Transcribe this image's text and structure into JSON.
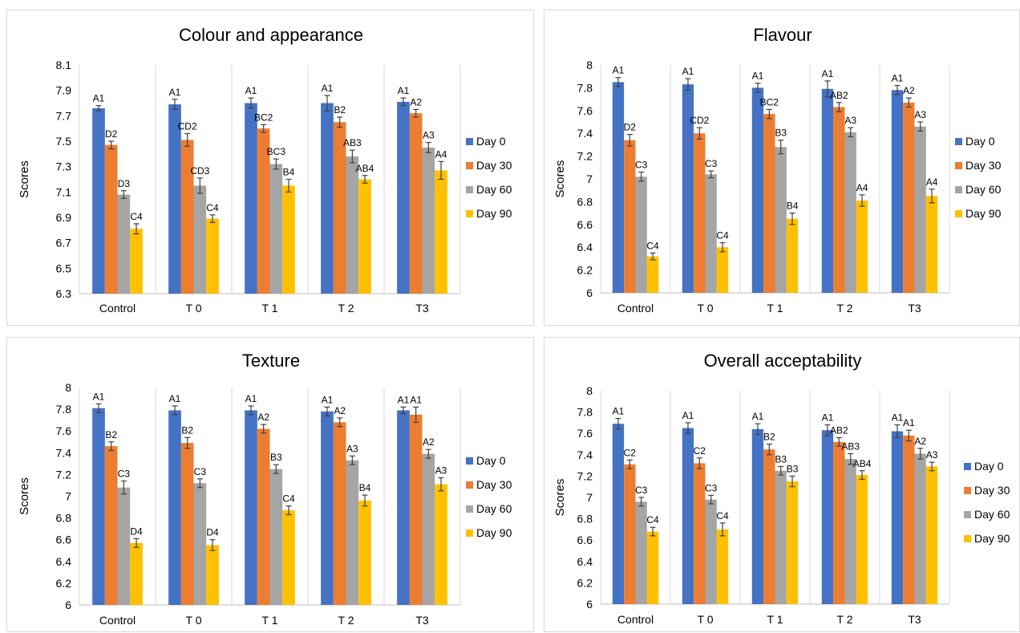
{
  "chart_data": [
    {
      "type": "bar",
      "title": "Colour and appearance",
      "ylabel": "Scores",
      "ylim": [
        6.3,
        8.1
      ],
      "yticks": [
        "6.3",
        "6.5",
        "6.7",
        "6.9",
        "7.1",
        "7.3",
        "7.5",
        "7.7",
        "7.9",
        "8.1"
      ],
      "categories": [
        "Control",
        "T 0",
        "T 1",
        "T 2",
        "T3"
      ],
      "legend_position": "right",
      "series": [
        {
          "name": "Day 0",
          "color": "#4472C4",
          "values": [
            7.76,
            7.79,
            7.8,
            7.8,
            7.81
          ],
          "errors": [
            0.02,
            0.04,
            0.04,
            0.06,
            0.03
          ],
          "labels": [
            "A1",
            "A1",
            "A1",
            "A1",
            "A1"
          ]
        },
        {
          "name": "Day 30",
          "color": "#ED7D31",
          "values": [
            7.47,
            7.51,
            7.6,
            7.65,
            7.72
          ],
          "errors": [
            0.03,
            0.05,
            0.03,
            0.04,
            0.03
          ],
          "labels": [
            "D2",
            "CD2",
            "BC2",
            "B2",
            "A2"
          ]
        },
        {
          "name": "Day 60",
          "color": "#A5A5A5",
          "values": [
            7.08,
            7.15,
            7.32,
            7.38,
            7.45
          ],
          "errors": [
            0.03,
            0.06,
            0.04,
            0.05,
            0.04
          ],
          "labels": [
            "D3",
            "CD3",
            "BC3",
            "AB3",
            "A3"
          ]
        },
        {
          "name": "Day 90",
          "color": "#FFC000",
          "values": [
            6.81,
            6.89,
            7.15,
            7.2,
            7.27
          ],
          "errors": [
            0.04,
            0.03,
            0.05,
            0.03,
            0.07
          ],
          "labels": [
            "C4",
            "C4",
            "B4",
            "AB4",
            "A4"
          ]
        }
      ]
    },
    {
      "type": "bar",
      "title": "Flavour",
      "ylabel": "Scores",
      "ylim": [
        6,
        8
      ],
      "yticks": [
        "6",
        "6.2",
        "6.4",
        "6.6",
        "6.8",
        "7",
        "7.2",
        "7.4",
        "7.6",
        "7.8",
        "8"
      ],
      "categories": [
        "Control",
        "T 0",
        "T 1",
        "T 2",
        "T3"
      ],
      "legend_position": "right",
      "series": [
        {
          "name": "Day 0",
          "color": "#4472C4",
          "values": [
            7.85,
            7.83,
            7.8,
            7.79,
            7.78
          ],
          "errors": [
            0.04,
            0.05,
            0.04,
            0.07,
            0.04
          ],
          "labels": [
            "A1",
            "A1",
            "A1",
            "A1",
            "A1"
          ]
        },
        {
          "name": "Day 30",
          "color": "#ED7D31",
          "values": [
            7.34,
            7.4,
            7.57,
            7.63,
            7.67
          ],
          "errors": [
            0.05,
            0.05,
            0.04,
            0.04,
            0.04
          ],
          "labels": [
            "D2",
            "CD2",
            "BC2",
            "AB2",
            "A2"
          ]
        },
        {
          "name": "Day 60",
          "color": "#A5A5A5",
          "values": [
            7.02,
            7.04,
            7.28,
            7.41,
            7.46
          ],
          "errors": [
            0.04,
            0.03,
            0.06,
            0.04,
            0.04
          ],
          "labels": [
            "C3",
            "C3",
            "B3",
            "A3",
            "A3"
          ]
        },
        {
          "name": "Day 90",
          "color": "#FFC000",
          "values": [
            6.32,
            6.4,
            6.65,
            6.81,
            6.85
          ],
          "errors": [
            0.03,
            0.04,
            0.05,
            0.05,
            0.06
          ],
          "labels": [
            "C4",
            "C4",
            "B4",
            "A4",
            "A4"
          ]
        }
      ]
    },
    {
      "type": "bar",
      "title": "Texture",
      "ylabel": "Scores",
      "ylim": [
        6,
        8
      ],
      "yticks": [
        "6",
        "6.2",
        "6.4",
        "6.6",
        "6.8",
        "7",
        "7.2",
        "7.4",
        "7.6",
        "7.8",
        "8"
      ],
      "categories": [
        "Control",
        "T 0",
        "T 1",
        "T 2",
        "T3"
      ],
      "legend_position": "right",
      "series": [
        {
          "name": "Day 0",
          "color": "#4472C4",
          "values": [
            7.81,
            7.79,
            7.79,
            7.78,
            7.79
          ],
          "errors": [
            0.04,
            0.04,
            0.04,
            0.04,
            0.03
          ],
          "labels": [
            "A1",
            "A1",
            "A1",
            "A1",
            "A1"
          ]
        },
        {
          "name": "Day 30",
          "color": "#ED7D31",
          "values": [
            7.46,
            7.49,
            7.62,
            7.68,
            7.75
          ],
          "errors": [
            0.04,
            0.05,
            0.04,
            0.04,
            0.07
          ],
          "labels": [
            "B2",
            "B2",
            "A2",
            "A2",
            "A1"
          ]
        },
        {
          "name": "Day 60",
          "color": "#A5A5A5",
          "values": [
            7.08,
            7.12,
            7.25,
            7.33,
            7.39
          ],
          "errors": [
            0.06,
            0.04,
            0.04,
            0.04,
            0.04
          ],
          "labels": [
            "C3",
            "C3",
            "B3",
            "A3",
            "A2"
          ]
        },
        {
          "name": "Day 90",
          "color": "#FFC000",
          "values": [
            6.57,
            6.55,
            6.87,
            6.96,
            7.11
          ],
          "errors": [
            0.04,
            0.05,
            0.04,
            0.05,
            0.06
          ],
          "labels": [
            "D4",
            "D4",
            "C4",
            "B4",
            "A3"
          ]
        }
      ]
    },
    {
      "type": "bar",
      "title": "Overall acceptability",
      "ylabel": "Scores",
      "ylim": [
        6,
        8
      ],
      "yticks": [
        "6",
        "6.2",
        "6.4",
        "6.6",
        "6.8",
        "7",
        "7.2",
        "7.4",
        "7.6",
        "7.8",
        "8"
      ],
      "categories": [
        "Control",
        "T 0",
        "T 1",
        "T 2",
        "T3"
      ],
      "legend_position": "right",
      "series": [
        {
          "name": "Day 0",
          "color": "#4472C4",
          "values": [
            7.69,
            7.65,
            7.64,
            7.63,
            7.62
          ],
          "errors": [
            0.05,
            0.05,
            0.05,
            0.05,
            0.06
          ],
          "labels": [
            "A1",
            "A1",
            "A1",
            "A1",
            "A1"
          ]
        },
        {
          "name": "Day 30",
          "color": "#ED7D31",
          "values": [
            7.31,
            7.32,
            7.45,
            7.52,
            7.58
          ],
          "errors": [
            0.04,
            0.05,
            0.05,
            0.04,
            0.05
          ],
          "labels": [
            "C2",
            "C2",
            "B2",
            "AB2",
            "A1"
          ]
        },
        {
          "name": "Day 60",
          "color": "#A5A5A5",
          "values": [
            6.96,
            6.98,
            7.25,
            7.36,
            7.41
          ],
          "errors": [
            0.04,
            0.04,
            0.04,
            0.05,
            0.05
          ],
          "labels": [
            "C3",
            "C3",
            "B3",
            "AB3",
            "A2"
          ]
        },
        {
          "name": "Day 90",
          "color": "#FFC000",
          "values": [
            6.68,
            6.7,
            7.15,
            7.21,
            7.29
          ],
          "errors": [
            0.04,
            0.06,
            0.05,
            0.04,
            0.04
          ],
          "labels": [
            "C4",
            "C4",
            "B3",
            "AB4",
            "A3"
          ]
        }
      ]
    }
  ]
}
